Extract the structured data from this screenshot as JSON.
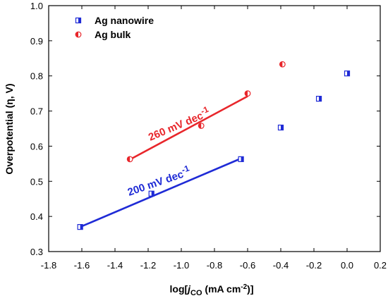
{
  "chart_data": {
    "type": "scatter",
    "x_axis": {
      "label_main": "log[",
      "label_sub": "CO",
      "label_unit": " (mA cm",
      "label_sup": "-2",
      "label_end": ")]",
      "min": -1.8,
      "max": 0.2,
      "ticks": [
        "-1.8",
        "-1.6",
        "-1.4",
        "-1.2",
        "-1.0",
        "-0.8",
        "-0.6",
        "-0.4",
        "-0.2",
        "0.0",
        "0.2"
      ]
    },
    "y_axis": {
      "label": "Overpotential (η, V)",
      "min": 0.3,
      "max": 1.0,
      "ticks": [
        "0.3",
        "0.4",
        "0.5",
        "0.6",
        "0.7",
        "0.8",
        "0.9",
        "1.0"
      ]
    },
    "grid": false,
    "legend_position": "top-left",
    "series": [
      {
        "name": "Ag nanowire",
        "color": "#1f2bd6",
        "marker": "half-filled-square",
        "x": [
          -1.61,
          -1.18,
          -0.64,
          -0.4,
          -0.17,
          0.0
        ],
        "y": [
          0.37,
          0.465,
          0.563,
          0.653,
          0.735,
          0.807
        ]
      },
      {
        "name": "Ag bulk",
        "color": "#e8262b",
        "marker": "half-filled-circle",
        "x": [
          -1.31,
          -0.88,
          -0.6,
          -0.39
        ],
        "y": [
          0.563,
          0.658,
          0.75,
          0.833
        ]
      }
    ],
    "fit_lines": [
      {
        "series": "Ag nanowire",
        "color": "#1f2bd6",
        "x": [
          -1.61,
          -0.64
        ],
        "y": [
          0.37,
          0.565
        ],
        "label": "200 mV dec-1",
        "label_main": "200 mV dec",
        "label_sup": "-1"
      },
      {
        "series": "Ag bulk",
        "color": "#e8262b",
        "x": [
          -1.31,
          -0.6
        ],
        "y": [
          0.562,
          0.742
        ],
        "label": "260 mV dec-1",
        "label_main": "260 mV dec",
        "label_sup": "-1"
      }
    ]
  }
}
